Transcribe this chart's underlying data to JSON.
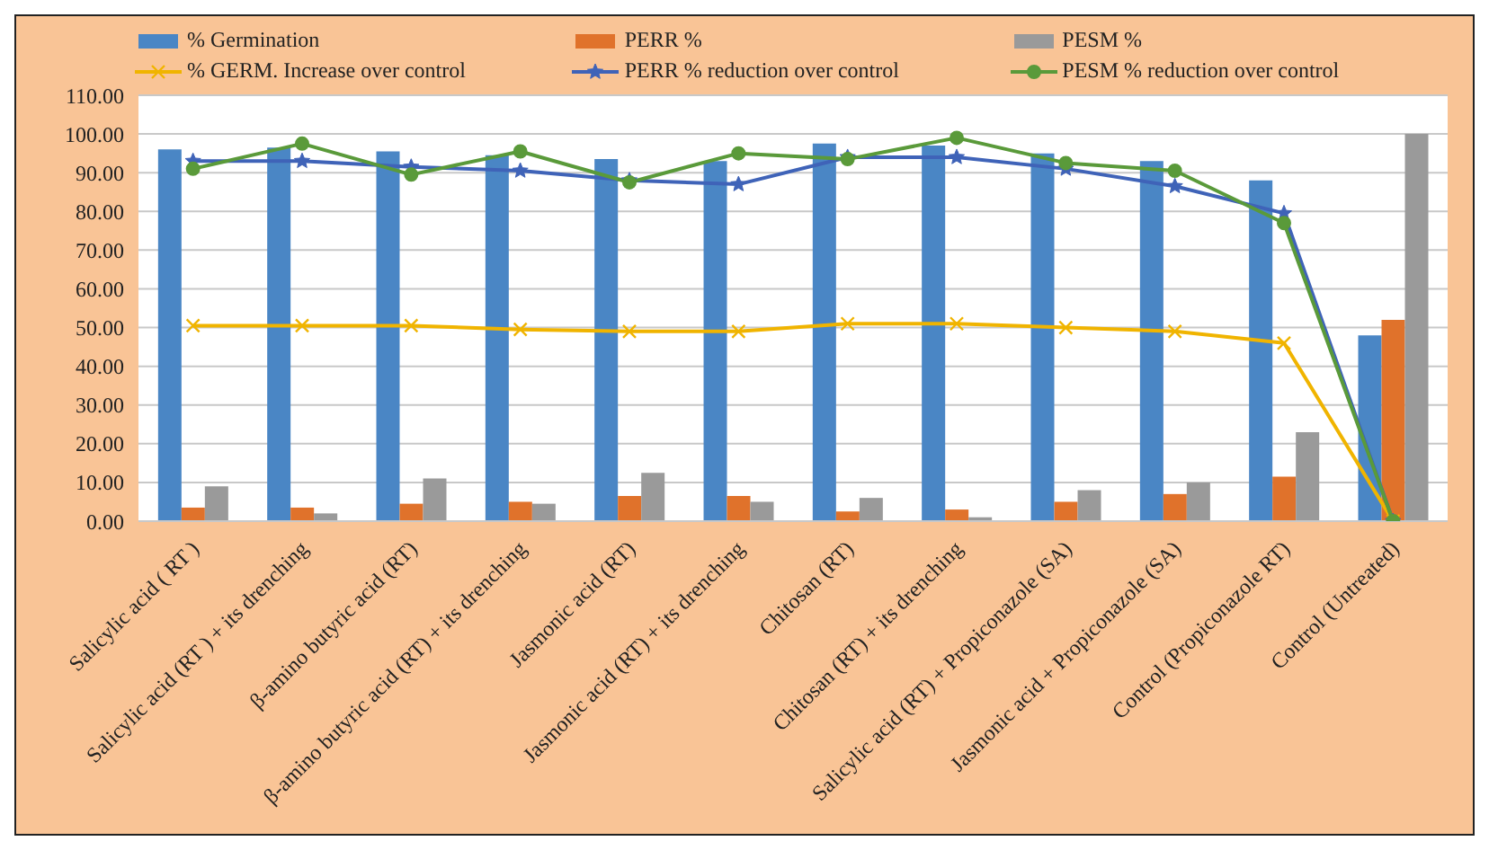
{
  "chart_data": {
    "type": "bar",
    "categories": [
      "Salicylic acid ( RT )",
      "Salicylic acid (RT ) + its drenching",
      "β-amino butyric acid (RT)",
      "β-amino butyric acid (RT) + its drenching",
      "Jasmonic acid (RT)",
      "Jasmonic acid (RT) + its drenching",
      "Chitosan (RT)",
      "Chitosan (RT) + its drenching",
      "Salicylic acid (RT) + Propiconazole (SA)",
      "Jasmonic acid + Propiconazole (SA)",
      "Control (Propiconazole RT)",
      "Control (Untreated)"
    ],
    "series": [
      {
        "name": "% Germination",
        "color": "#4a86c5",
        "values": [
          96,
          96.5,
          95.5,
          94.5,
          93.5,
          93,
          97.5,
          97,
          95,
          93,
          88,
          48
        ]
      },
      {
        "name": "PERR %",
        "color": "#e0722b",
        "values": [
          3.5,
          3.5,
          4.5,
          5,
          6.5,
          6.5,
          2.5,
          3,
          5,
          7,
          11.5,
          52
        ]
      },
      {
        "name": "PESM %",
        "color": "#9a9a9a",
        "values": [
          9,
          2,
          11,
          4.5,
          12.5,
          5,
          6,
          1,
          8,
          10,
          23,
          100
        ]
      },
      {
        "name": "% GERM. Increase over control",
        "type": "line",
        "marker": "cross",
        "color": "#f0b400",
        "values": [
          50.5,
          50.5,
          50.5,
          49.5,
          49,
          49,
          51,
          51,
          50,
          49,
          46,
          0
        ]
      },
      {
        "name": "PERR  % reduction over control",
        "type": "line",
        "marker": "star",
        "color": "#3f63b8",
        "values": [
          93,
          93,
          91.5,
          90.5,
          88,
          87,
          94,
          94,
          91,
          86.5,
          79.5,
          0
        ]
      },
      {
        "name": "PESM  % reduction over control",
        "type": "line",
        "marker": "circle",
        "color": "#5a9a3a",
        "values": [
          91,
          97.5,
          89.5,
          95.5,
          87.5,
          95,
          93.5,
          99,
          92.5,
          90.5,
          77,
          0
        ]
      }
    ],
    "ylim": [
      0,
      110
    ],
    "yticks": [
      {
        "value": 0,
        "label": "0.00"
      },
      {
        "value": 10,
        "label": "10.00"
      },
      {
        "value": 20,
        "label": "20.00"
      },
      {
        "value": 30,
        "label": "30.00"
      },
      {
        "value": 40,
        "label": "40.00"
      },
      {
        "value": 50,
        "label": "50.00"
      },
      {
        "value": 60,
        "label": "60.00"
      },
      {
        "value": 70,
        "label": "70.00"
      },
      {
        "value": 80,
        "label": "80.00"
      },
      {
        "value": 90,
        "label": "90.00"
      },
      {
        "value": 100,
        "label": "100.00"
      },
      {
        "value": 110,
        "label": "110.00"
      }
    ],
    "grid": "y",
    "legend": "top"
  }
}
